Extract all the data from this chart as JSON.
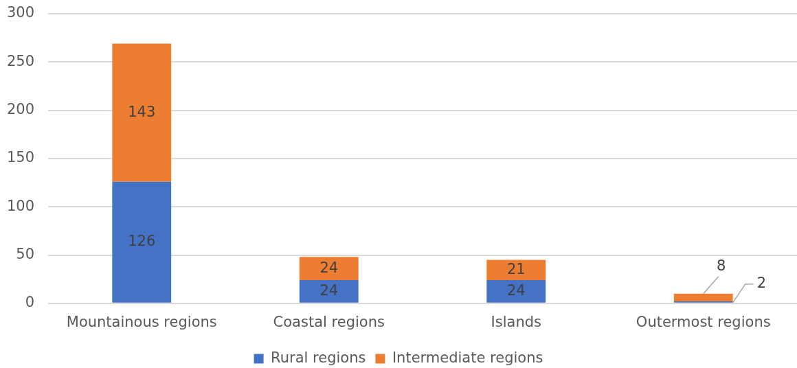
{
  "chart_data": {
    "type": "bar",
    "stacked": true,
    "categories": [
      "Mountainous regions",
      "Coastal regions",
      "Islands",
      "Outermost regions"
    ],
    "series": [
      {
        "name": "Rural regions",
        "color": "#4472c4",
        "values": [
          126,
          24,
          24,
          2
        ]
      },
      {
        "name": "Intermediate regions",
        "color": "#ed7d31",
        "values": [
          143,
          24,
          21,
          8
        ]
      }
    ],
    "ylim": [
      0,
      300
    ],
    "yticks": [
      0,
      50,
      100,
      150,
      200,
      250,
      300
    ],
    "grid": "y",
    "legend": "bottom",
    "data_labels": true
  }
}
